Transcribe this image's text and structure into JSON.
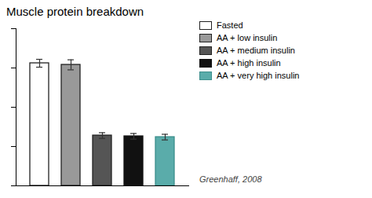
{
  "chart_data": {
    "type": "bar",
    "title": "Muscle protein breakdown",
    "categories": [
      "Fasted",
      "AA + low insulin",
      "AA + medium insulin",
      "AA + high insulin",
      "AA + very high insulin"
    ],
    "values": [
      0.78,
      0.77,
      0.32,
      0.315,
      0.31
    ],
    "errors": [
      0.025,
      0.032,
      0.018,
      0.018,
      0.018
    ],
    "colors": [
      "#ffffff",
      "#999999",
      "#555555",
      "#111111",
      "#5aacaa"
    ],
    "edgecolors": [
      "#222222",
      "#222222",
      "#222222",
      "#111111",
      "#3d8f8d"
    ],
    "ylim": [
      0,
      1.0
    ],
    "yticks": [
      0,
      0.25,
      0.5,
      0.75,
      1.0
    ],
    "tick_labels": false,
    "grid": false,
    "legend": "right",
    "annotations": [
      "Greenhaff, 2008"
    ]
  }
}
